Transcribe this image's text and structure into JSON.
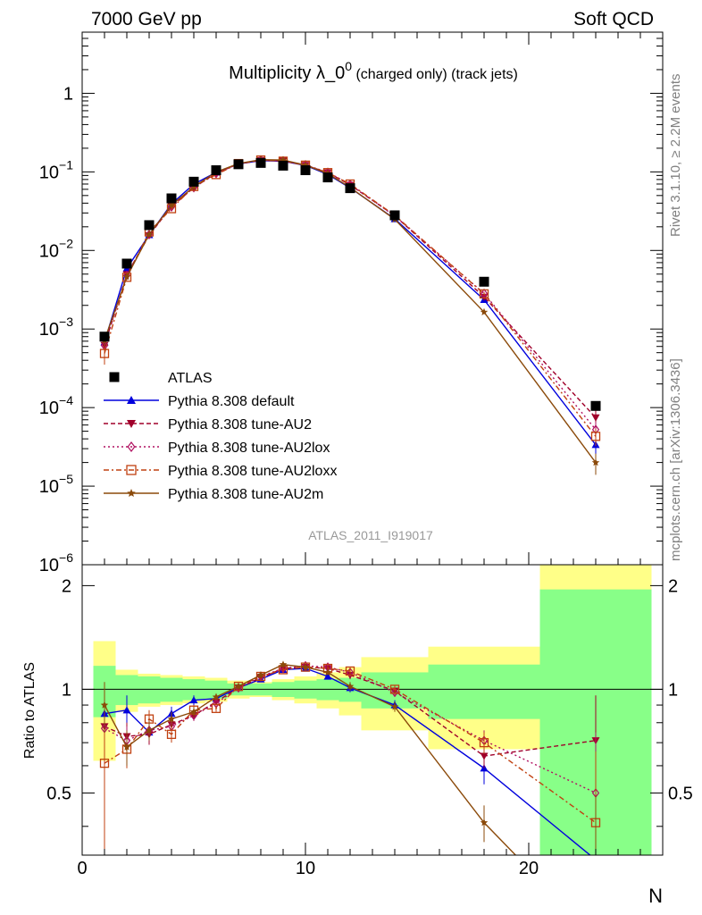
{
  "header": {
    "left": "7000 GeV pp",
    "right": "Soft QCD"
  },
  "side_labels": {
    "rivet": "Rivet 3.1.10, ≥ 2.2M events",
    "mcplots": "mcplots.cern.ch [arXiv:1306.3436]"
  },
  "watermark": "ATLAS_2011_I919017",
  "chart_data": {
    "type": "scatter",
    "title_main": "Multiplicity λ_0",
    "title_sup": "0",
    "title_tail": " (charged only) (track jets)",
    "xlabel": "N",
    "ylabel_ratio": "Ratio to ATLAS",
    "xlim": [
      0,
      26
    ],
    "ylim": [
      1e-06,
      6
    ],
    "ratio_ylim": [
      0.33,
      2.3
    ],
    "log_y": true,
    "x_ticks": [
      "0",
      "10",
      "20"
    ],
    "y_ticks": [
      {
        "base": "10",
        "exp": "−6"
      },
      {
        "base": "10",
        "exp": "−5"
      },
      {
        "base": "10",
        "exp": "−4"
      },
      {
        "base": "10",
        "exp": "−3"
      },
      {
        "base": "10",
        "exp": "−2"
      },
      {
        "base": "10",
        "exp": "−1"
      },
      {
        "base": "1",
        "exp": ""
      }
    ],
    "ratio_ticks": [
      "0.5",
      "1",
      "2"
    ],
    "legend": {
      "position": "lower-left",
      "data_label": "ATLAS"
    },
    "data": {
      "name": "ATLAS",
      "color": "#000000",
      "x": [
        1,
        2,
        3,
        4,
        5,
        6,
        7,
        8,
        9,
        10,
        11,
        12,
        14,
        18,
        23
      ],
      "y": [
        0.0008,
        0.0068,
        0.021,
        0.046,
        0.075,
        0.105,
        0.125,
        0.13,
        0.12,
        0.105,
        0.085,
        0.062,
        0.028,
        0.004,
        0.000105
      ],
      "bins": [
        [
          0.5,
          1.5
        ],
        [
          1.5,
          2.5
        ],
        [
          2.5,
          3.5
        ],
        [
          3.5,
          4.5
        ],
        [
          4.5,
          5.5
        ],
        [
          5.5,
          6.5
        ],
        [
          6.5,
          7.5
        ],
        [
          7.5,
          8.5
        ],
        [
          8.5,
          9.5
        ],
        [
          9.5,
          10.5
        ],
        [
          10.5,
          11.5
        ],
        [
          11.5,
          12.5
        ],
        [
          12.5,
          15.5
        ],
        [
          15.5,
          20.5
        ],
        [
          20.5,
          25.5
        ]
      ],
      "band_green": [
        0.17,
        0.1,
        0.09,
        0.08,
        0.07,
        0.06,
        0.04,
        0.04,
        0.05,
        0.06,
        0.07,
        0.08,
        0.12,
        0.18,
        0.95
      ],
      "band_yellow": [
        0.38,
        0.14,
        0.11,
        0.1,
        0.09,
        0.08,
        0.06,
        0.05,
        0.07,
        0.09,
        0.12,
        0.16,
        0.24,
        0.33,
        1.5
      ]
    },
    "series": [
      {
        "name": "Pythia 8.308 default",
        "color": "#0000dd",
        "marker": "triangle-up",
        "dash": "",
        "ratio": [
          0.85,
          0.87,
          0.75,
          0.85,
          0.93,
          0.94,
          1.01,
          1.07,
          1.14,
          1.15,
          1.09,
          1.01,
          0.9,
          0.59,
          0.32
        ],
        "ratio_err": [
          0.15,
          0.09,
          0.05,
          0.04,
          0.03,
          0.02,
          0.02,
          0.02,
          0.02,
          0.02,
          0.02,
          0.03,
          0.03,
          0.06,
          0.3
        ]
      },
      {
        "name": "Pythia 8.308 tune-AU2",
        "color": "#a0002a",
        "marker": "triangle-down",
        "dash": "5,3",
        "ratio": [
          0.78,
          0.73,
          0.74,
          0.79,
          0.84,
          0.92,
          1.01,
          1.08,
          1.15,
          1.16,
          1.15,
          1.1,
          0.99,
          0.64,
          0.71
        ],
        "ratio_err": [
          0.2,
          0.07,
          0.05,
          0.04,
          0.03,
          0.02,
          0.02,
          0.02,
          0.02,
          0.02,
          0.02,
          0.03,
          0.03,
          0.05,
          0.25
        ]
      },
      {
        "name": "Pythia 8.308 tune-AU2lox",
        "color": "#b01060",
        "marker": "diamond",
        "dash": "2,3",
        "ratio": [
          0.77,
          0.71,
          0.76,
          0.78,
          0.84,
          0.91,
          1.01,
          1.09,
          1.15,
          1.17,
          1.16,
          1.12,
          0.98,
          0.71,
          0.5
        ],
        "ratio_err": [
          0.2,
          0.07,
          0.05,
          0.04,
          0.03,
          0.02,
          0.02,
          0.02,
          0.02,
          0.02,
          0.02,
          0.03,
          0.03,
          0.05,
          0.25
        ]
      },
      {
        "name": "Pythia 8.308 tune-AU2loxx",
        "color": "#c04010",
        "marker": "square-open",
        "dash": "6,3,2,3",
        "ratio": [
          0.61,
          0.67,
          0.82,
          0.74,
          0.87,
          0.88,
          1.02,
          1.09,
          1.14,
          1.16,
          1.15,
          1.13,
          1.0,
          0.7,
          0.41
        ],
        "ratio_err": [
          0.28,
          0.08,
          0.05,
          0.04,
          0.03,
          0.02,
          0.02,
          0.02,
          0.02,
          0.02,
          0.02,
          0.03,
          0.03,
          0.05,
          0.25
        ]
      },
      {
        "name": "Pythia 8.308 tune-AU2m",
        "color": "#8b4a0a",
        "marker": "star",
        "dash": "",
        "ratio": [
          0.9,
          0.68,
          0.76,
          0.82,
          0.86,
          0.95,
          1.02,
          1.1,
          1.18,
          1.16,
          1.12,
          1.02,
          0.89,
          0.41,
          0.19
        ],
        "ratio_err": [
          0.15,
          0.08,
          0.05,
          0.04,
          0.03,
          0.02,
          0.02,
          0.02,
          0.02,
          0.02,
          0.02,
          0.03,
          0.03,
          0.05,
          0.3
        ]
      }
    ]
  }
}
